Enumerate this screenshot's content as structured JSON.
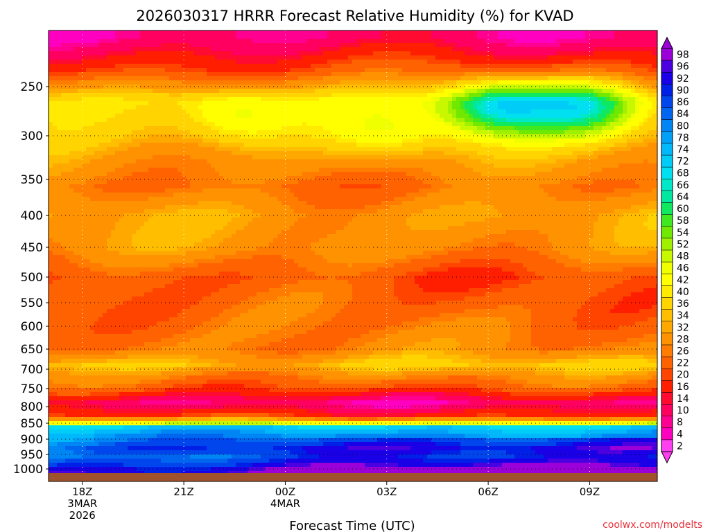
{
  "chart_data": {
    "type": "heatmap",
    "title": "2026030317 HRRR Forecast Relative Humidity (%) for KVAD",
    "xlabel": "Forecast Time (UTC)",
    "ylabel": "",
    "credit": "coolwx.com/modelts",
    "y_ticks": [
      "250",
      "300",
      "350",
      "400",
      "450",
      "500",
      "550",
      "600",
      "650",
      "700",
      "750",
      "800",
      "850",
      "900",
      "950",
      "1000"
    ],
    "y_tick_values": [
      250,
      300,
      350,
      400,
      450,
      500,
      550,
      600,
      650,
      700,
      750,
      800,
      850,
      900,
      950,
      1000
    ],
    "x_ticks": [
      {
        "hour": 0,
        "lines": [
          "18Z",
          "3MAR",
          "2026"
        ]
      },
      {
        "hour": 3,
        "lines": [
          "21Z"
        ]
      },
      {
        "hour": 6,
        "lines": [
          "00Z",
          "4MAR"
        ]
      },
      {
        "hour": 9,
        "lines": [
          "03Z"
        ]
      },
      {
        "hour": 12,
        "lines": [
          "06Z"
        ]
      },
      {
        "hour": 15,
        "lines": [
          "09Z"
        ]
      }
    ],
    "xlim_hours": [
      -1,
      17
    ],
    "pressure_range_hpa": [
      1020,
      200
    ],
    "colorbar_labels": [
      "98",
      "96",
      "92",
      "90",
      "86",
      "84",
      "80",
      "78",
      "74",
      "72",
      "68",
      "66",
      "64",
      "60",
      "58",
      "54",
      "52",
      "48",
      "46",
      "42",
      "40",
      "36",
      "34",
      "32",
      "28",
      "26",
      "22",
      "20",
      "16",
      "14",
      "10",
      "8",
      "4",
      "2"
    ],
    "colorbar_colors": [
      "#9b00d8",
      "#4b00e0",
      "#1a00e6",
      "#0020e8",
      "#0046ec",
      "#0066f0",
      "#0086f4",
      "#00a0f8",
      "#00b8fa",
      "#00ccf8",
      "#00e0f0",
      "#00e8c8",
      "#00e8a0",
      "#10e860",
      "#40e820",
      "#70e800",
      "#a0f000",
      "#c8f800",
      "#f0ff00",
      "#ffff00",
      "#ffea00",
      "#ffd400",
      "#ffbe00",
      "#ffa800",
      "#ff9200",
      "#ff7c00",
      "#ff6200",
      "#ff4400",
      "#ff1e00",
      "#ff0a30",
      "#ff0060",
      "#ff0090",
      "#ff00c0",
      "#ff40f0"
    ],
    "rh_profile": [
      {
        "p": 200,
        "rh": 10
      },
      {
        "p": 215,
        "rh": 15
      },
      {
        "p": 235,
        "rh": 22
      },
      {
        "p": 265,
        "rh": 40
      },
      {
        "p": 300,
        "rh": 36
      },
      {
        "p": 330,
        "rh": 30
      },
      {
        "p": 360,
        "rh": 26
      },
      {
        "p": 400,
        "rh": 32
      },
      {
        "p": 450,
        "rh": 30
      },
      {
        "p": 500,
        "rh": 22
      },
      {
        "p": 550,
        "rh": 24
      },
      {
        "p": 600,
        "rh": 26
      },
      {
        "p": 650,
        "rh": 28
      },
      {
        "p": 690,
        "rh": 36
      },
      {
        "p": 720,
        "rh": 28
      },
      {
        "p": 750,
        "rh": 22
      },
      {
        "p": 790,
        "rh": 10
      },
      {
        "p": 830,
        "rh": 20
      },
      {
        "p": 850,
        "rh": 46
      },
      {
        "p": 860,
        "rh": 72
      },
      {
        "p": 880,
        "rh": 78
      },
      {
        "p": 900,
        "rh": 84
      },
      {
        "p": 930,
        "rh": 90
      },
      {
        "p": 960,
        "rh": 86
      },
      {
        "p": 985,
        "rh": 92
      },
      {
        "p": 1000,
        "rh": 96
      },
      {
        "p": 1020,
        "rh": 98
      }
    ],
    "moist_patches": [
      {
        "hour": 4.5,
        "p": 280,
        "rh_add": 12
      },
      {
        "hour": 12.3,
        "p": 270,
        "rh_add": 30
      },
      {
        "hour": 14.8,
        "p": 272,
        "rh_add": 26
      },
      {
        "hour": 9.0,
        "p": 300,
        "rh_add": 10
      }
    ],
    "surface_color": "#a0522d"
  }
}
